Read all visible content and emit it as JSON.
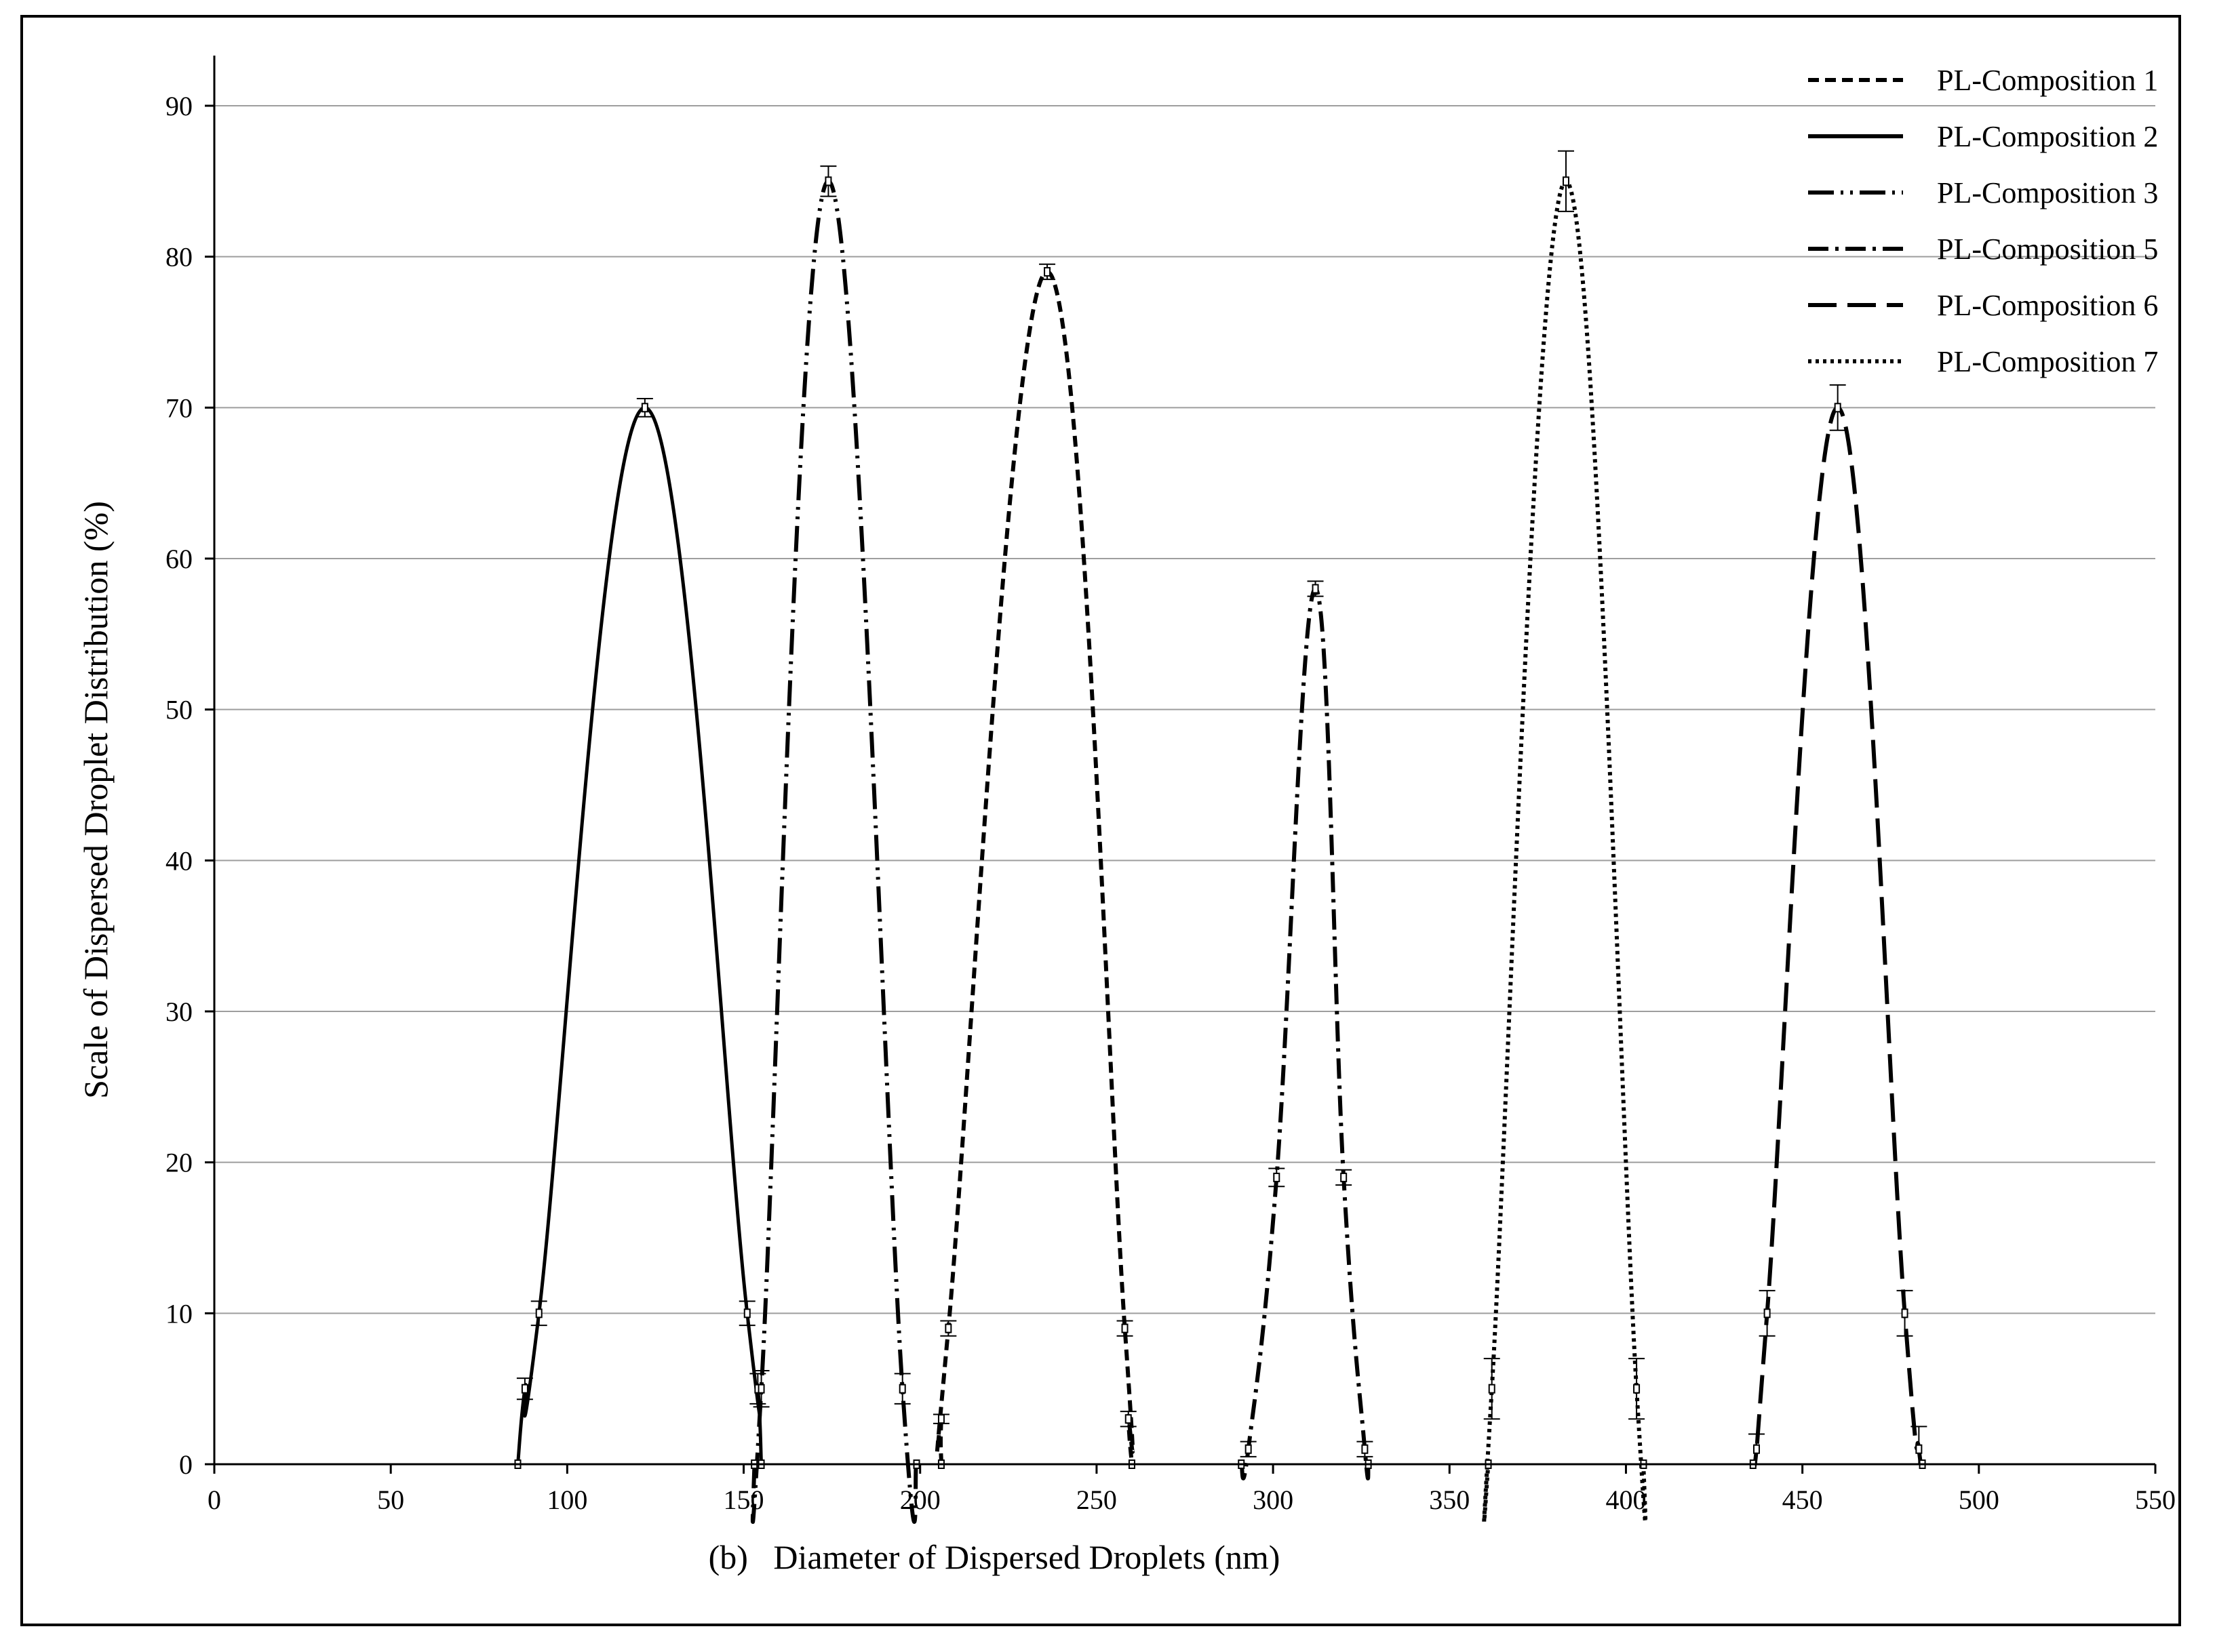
{
  "chart_data": {
    "type": "line",
    "xlabel": "(b)   Diameter of Dispersed Droplets (nm)",
    "ylabel": "Scale of Dispersed Droplet Distribution (%)",
    "xlim": [
      0,
      550
    ],
    "ylim": [
      0,
      95
    ],
    "xticks": [
      0,
      50,
      100,
      150,
      200,
      250,
      300,
      350,
      400,
      450,
      500,
      550
    ],
    "yticks": [
      0,
      10,
      20,
      30,
      40,
      50,
      60,
      70,
      80,
      90
    ],
    "grid": "horizontal",
    "legend_position": "top-right",
    "series": [
      {
        "name": "PL-Composition 1",
        "dash": "dashed",
        "points": [
          [
            206,
            0
          ],
          [
            206,
            3
          ],
          [
            208,
            9
          ],
          [
            236,
            79
          ],
          [
            258,
            9
          ],
          [
            259,
            3
          ],
          [
            260,
            0
          ]
        ],
        "errors": [
          0,
          0.3,
          0.5,
          0.5,
          0.5,
          0.5,
          0
        ]
      },
      {
        "name": "PL-Composition 2",
        "dash": "solid",
        "points": [
          [
            86,
            0
          ],
          [
            88,
            5
          ],
          [
            92,
            10
          ],
          [
            122,
            70
          ],
          [
            151,
            10
          ],
          [
            154,
            5
          ],
          [
            155,
            0
          ]
        ],
        "errors": [
          0,
          0.7,
          0.8,
          0.6,
          0.8,
          1,
          0
        ]
      },
      {
        "name": "PL-Composition 3",
        "dash": "dash-dot-dot",
        "points": [
          [
            153,
            0
          ],
          [
            155,
            5
          ],
          [
            174,
            85
          ],
          [
            195,
            5
          ],
          [
            199,
            0
          ]
        ],
        "errors": [
          0,
          1.2,
          1,
          1,
          0
        ]
      },
      {
        "name": "PL-Composition 5",
        "dash": "dash-dot",
        "points": [
          [
            291,
            0
          ],
          [
            293,
            1
          ],
          [
            301,
            19
          ],
          [
            312,
            58
          ],
          [
            320,
            19
          ],
          [
            326,
            1
          ],
          [
            327,
            0
          ]
        ],
        "errors": [
          0,
          0.5,
          0.6,
          0.5,
          0.5,
          0.5,
          0
        ]
      },
      {
        "name": "PL-Composition 6",
        "dash": "long-dash",
        "points": [
          [
            436,
            0
          ],
          [
            437,
            1
          ],
          [
            440,
            10
          ],
          [
            460,
            70
          ],
          [
            479,
            10
          ],
          [
            483,
            1
          ],
          [
            484,
            0
          ]
        ],
        "errors": [
          0,
          1,
          1.5,
          1.5,
          1.5,
          1.5,
          0
        ]
      },
      {
        "name": "PL-Composition 7",
        "dash": "dotted",
        "points": [
          [
            361,
            0
          ],
          [
            362,
            5
          ],
          [
            383,
            85
          ],
          [
            403,
            5
          ],
          [
            405,
            0
          ]
        ],
        "errors": [
          0,
          2,
          2,
          2,
          0
        ]
      }
    ]
  },
  "colors": {
    "line": "#000000",
    "grid": "#9e9e9e",
    "background": "#ffffff"
  }
}
